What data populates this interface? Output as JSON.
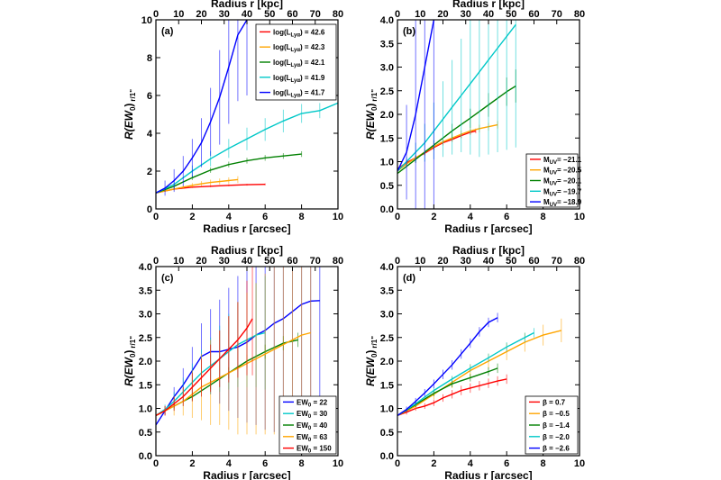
{
  "chart_data": [
    {
      "type": "line",
      "panel_label": "(a)",
      "xlabel": "Radius r [arcsec]",
      "x2label": "Radius r [kpc]",
      "ylabel_main": "R(EW",
      "ylabel_sub": "0",
      "ylabel_close": ")",
      "ylabel_suffix": "r/1\"",
      "xlim": [
        0,
        10
      ],
      "ylim": [
        0,
        10
      ],
      "xticks": [
        "0",
        "2",
        "4",
        "6",
        "8",
        "10"
      ],
      "yticks": [
        "0",
        "2",
        "4",
        "6",
        "8",
        "10"
      ],
      "x2ticks": [
        "0",
        "10",
        "20",
        "30",
        "40",
        "50",
        "60",
        "70",
        "80"
      ],
      "legend": "top-right",
      "series": [
        {
          "name": "log(L",
          "name_sub": "Lyα",
          "name_suffix": ") = 42.6",
          "color": "#ff0000",
          "x": [
            0,
            1,
            2,
            3,
            4,
            5,
            6
          ],
          "y": [
            0.85,
            1.05,
            1.15,
            1.2,
            1.25,
            1.28,
            1.3
          ],
          "err": [
            0.05,
            0.05,
            0.05,
            0.05,
            0.05,
            0.05,
            0.05
          ]
        },
        {
          "name": "log(L",
          "name_sub": "Lyα",
          "name_suffix": ") = 42.3",
          "color": "#ffa500",
          "x": [
            0,
            0.5,
            1,
            1.5,
            2,
            2.5,
            3,
            3.5,
            4,
            4.5
          ],
          "y": [
            0.85,
            0.95,
            1.05,
            1.15,
            1.25,
            1.33,
            1.4,
            1.45,
            1.5,
            1.55
          ],
          "err": [
            0.05,
            0.05,
            0.08,
            0.1,
            0.12,
            0.14,
            0.15,
            0.16,
            0.17,
            0.18
          ]
        },
        {
          "name": "log(L",
          "name_sub": "Lyα",
          "name_suffix": ") = 42.1",
          "color": "#008000",
          "x": [
            0,
            1,
            2,
            3,
            4,
            5,
            6,
            7,
            8
          ],
          "y": [
            0.85,
            1.2,
            1.65,
            2.05,
            2.35,
            2.55,
            2.7,
            2.8,
            2.9
          ],
          "err": [
            0.05,
            0.1,
            0.12,
            0.14,
            0.15,
            0.15,
            0.15,
            0.15,
            0.15
          ]
        },
        {
          "name": "log(L",
          "name_sub": "Lyα",
          "name_suffix": ") = 41.9",
          "color": "#00c8c8",
          "x": [
            0,
            1,
            2,
            3,
            4,
            5,
            6,
            7,
            8,
            9,
            10
          ],
          "y": [
            0.85,
            1.3,
            2.0,
            2.65,
            3.2,
            3.7,
            4.2,
            4.65,
            5.05,
            5.2,
            5.6
          ],
          "err": [
            0.1,
            0.2,
            0.3,
            0.4,
            0.5,
            0.6,
            0.6,
            0.6,
            0.5,
            0.4,
            0.4
          ]
        },
        {
          "name": "log(L",
          "name_sub": "Lyα",
          "name_suffix": ") = 41.7",
          "color": "#0000ff",
          "x": [
            0,
            0.5,
            1,
            1.5,
            2,
            2.5,
            3,
            3.5,
            4,
            4.5,
            5
          ],
          "y": [
            0.85,
            1.1,
            1.5,
            2.0,
            2.7,
            3.5,
            4.6,
            5.9,
            7.5,
            9.2,
            10
          ],
          "err": [
            0.2,
            0.4,
            0.6,
            0.8,
            1.0,
            1.3,
            1.8,
            2.5,
            3.0,
            3.5,
            4.0
          ]
        }
      ]
    },
    {
      "type": "line",
      "panel_label": "(b)",
      "xlabel": "Radius r [arcsec]",
      "x2label": "Radius r [kpc]",
      "ylabel_main": "R(EW",
      "ylabel_sub": "0",
      "ylabel_close": ")",
      "ylabel_suffix": "r/1\"",
      "xlim": [
        0,
        10
      ],
      "ylim": [
        0,
        4
      ],
      "xticks": [
        "0",
        "2",
        "4",
        "6",
        "8",
        "10"
      ],
      "yticks": [
        "0.0",
        "0.5",
        "1.0",
        "1.5",
        "2.0",
        "2.5",
        "3.0",
        "3.5",
        "4.0"
      ],
      "x2ticks": [
        "0",
        "10",
        "20",
        "30",
        "40",
        "50",
        "60",
        "70",
        "80"
      ],
      "legend": "bottom-right",
      "series": [
        {
          "name": "M",
          "name_sub": "UV",
          "name_suffix": "= −21.1",
          "color": "#ff0000",
          "x": [
            0,
            0.5,
            1,
            1.5,
            2,
            2.5,
            3,
            3.5,
            4,
            4.3
          ],
          "y": [
            0.85,
            0.98,
            1.08,
            1.18,
            1.3,
            1.4,
            1.47,
            1.55,
            1.62,
            1.65
          ],
          "err": [
            0.05,
            0.05,
            0.05,
            0.05,
            0.05,
            0.05,
            0.05,
            0.05,
            0.05,
            0.05
          ]
        },
        {
          "name": "M",
          "name_sub": "UV",
          "name_suffix": "= −20.5",
          "color": "#ffa500",
          "x": [
            0,
            0.5,
            1,
            1.5,
            2,
            2.5,
            3,
            3.5,
            4,
            4.5,
            5,
            5.5
          ],
          "y": [
            0.8,
            0.95,
            1.08,
            1.2,
            1.32,
            1.42,
            1.5,
            1.58,
            1.65,
            1.7,
            1.74,
            1.78
          ],
          "err": [
            0.05,
            0.05,
            0.05,
            0.06,
            0.07,
            0.08,
            0.08,
            0.08,
            0.08,
            0.08,
            0.08,
            0.08
          ]
        },
        {
          "name": "M",
          "name_sub": "UV",
          "name_suffix": "= −20.1",
          "color": "#008000",
          "x": [
            0,
            1,
            2,
            3,
            4,
            5,
            6,
            6.5
          ],
          "y": [
            0.75,
            1.05,
            1.35,
            1.65,
            1.92,
            2.2,
            2.48,
            2.6
          ],
          "err": [
            0.05,
            0.08,
            0.1,
            0.15,
            0.2,
            0.25,
            0.3,
            0.35
          ]
        },
        {
          "name": "M",
          "name_sub": "UV",
          "name_suffix": "= −19.7",
          "color": "#00c8c8",
          "x": [
            0,
            0.5,
            1,
            1.5,
            2,
            2.5,
            3,
            3.5,
            4,
            4.5,
            5,
            5.5,
            6,
            6.5
          ],
          "y": [
            0.8,
            1.0,
            1.2,
            1.4,
            1.65,
            1.9,
            2.15,
            2.4,
            2.65,
            2.9,
            3.15,
            3.4,
            3.65,
            3.9
          ],
          "err": [
            0.05,
            0.1,
            0.2,
            0.4,
            0.6,
            0.8,
            1.0,
            1.2,
            1.5,
            1.8,
            2.0,
            2.2,
            2.4,
            2.6
          ]
        },
        {
          "name": "M",
          "name_sub": "UV",
          "name_suffix": "= −18.9",
          "color": "#0000ff",
          "x": [
            0,
            0.5,
            1,
            1.5,
            2
          ],
          "y": [
            0.8,
            1.2,
            2.0,
            3.0,
            4.0
          ],
          "err": [
            0.2,
            1.0,
            2.0,
            3.5,
            4.0
          ]
        }
      ]
    },
    {
      "type": "line",
      "panel_label": "(c)",
      "xlabel": "Radius r [arcsec]",
      "x2label": "Radius r [kpc]",
      "ylabel_main": "R(EW",
      "ylabel_sub": "0",
      "ylabel_close": ")",
      "ylabel_suffix": "r/1\"",
      "xlim": [
        0,
        10
      ],
      "ylim": [
        0,
        4
      ],
      "xticks": [
        "0",
        "2",
        "4",
        "6",
        "8",
        "10"
      ],
      "yticks": [
        "0.0",
        "0.5",
        "1.0",
        "1.5",
        "2.0",
        "2.5",
        "3.0",
        "3.5",
        "4.0"
      ],
      "x2ticks": [
        "0",
        "10",
        "20",
        "30",
        "40",
        "50",
        "60",
        "70",
        "80"
      ],
      "legend": "bottom-right",
      "series": [
        {
          "name": "EW",
          "name_sub": "0",
          "name_suffix": " = 22",
          "color": "#0000ff",
          "x": [
            0,
            0.5,
            1,
            1.5,
            2,
            2.5,
            3,
            3.5,
            4,
            4.5,
            5,
            5.5,
            6,
            6.5,
            7,
            7.5,
            8,
            8.5,
            9
          ],
          "y": [
            0.65,
            0.95,
            1.25,
            1.5,
            1.8,
            2.1,
            2.2,
            2.2,
            2.25,
            2.3,
            2.4,
            2.55,
            2.65,
            2.8,
            2.9,
            3.05,
            3.2,
            3.27,
            3.28
          ],
          "err": [
            0.05,
            0.1,
            0.2,
            0.35,
            0.5,
            0.7,
            0.9,
            1.1,
            1.3,
            1.5,
            1.7,
            1.9,
            2.1,
            2.3,
            2.5,
            2.6,
            2.7,
            2.8,
            2.9
          ]
        },
        {
          "name": "EW",
          "name_sub": "0",
          "name_suffix": " = 30",
          "color": "#00c8c8",
          "x": [
            0,
            0.5,
            1,
            1.5,
            2,
            2.5,
            3,
            3.5,
            4,
            4.5,
            5,
            5.5,
            6
          ],
          "y": [
            0.85,
            0.98,
            1.15,
            1.35,
            1.55,
            1.75,
            1.9,
            2.05,
            2.2,
            2.35,
            2.45,
            2.55,
            2.6
          ],
          "err": [
            0.05,
            0.1,
            0.2,
            0.3,
            0.4,
            0.5,
            0.6,
            0.7,
            0.8,
            0.9,
            1.0,
            1.1,
            1.2
          ]
        },
        {
          "name": "EW",
          "name_sub": "0",
          "name_suffix": " = 40",
          "color": "#008000",
          "x": [
            0,
            1,
            2,
            3,
            4,
            5,
            6,
            7,
            7.8
          ],
          "y": [
            0.85,
            1.05,
            1.25,
            1.5,
            1.75,
            2.0,
            2.2,
            2.38,
            2.45
          ],
          "err": [
            0.05,
            0.05,
            0.08,
            0.1,
            0.12,
            0.14,
            0.15,
            0.15,
            0.15
          ]
        },
        {
          "name": "EW",
          "name_sub": "0",
          "name_suffix": " = 63",
          "color": "#ffa500",
          "x": [
            0,
            0.5,
            1,
            1.5,
            2,
            2.5,
            3,
            3.5,
            4,
            4.5,
            5,
            5.5,
            6,
            6.5,
            7,
            7.5,
            8,
            8.5
          ],
          "y": [
            0.85,
            0.95,
            1.05,
            1.15,
            1.3,
            1.45,
            1.55,
            1.65,
            1.75,
            1.85,
            1.95,
            2.05,
            2.15,
            2.25,
            2.35,
            2.45,
            2.55,
            2.6
          ],
          "err": [
            0.05,
            0.1,
            0.2,
            0.3,
            0.5,
            0.7,
            0.9,
            1.0,
            1.2,
            1.4,
            1.5,
            1.6,
            1.7,
            1.8,
            1.9,
            2.0,
            2.1,
            2.2
          ]
        },
        {
          "name": "EW",
          "name_sub": "0",
          "name_suffix": " = 150",
          "color": "#ff0000",
          "x": [
            0,
            0.5,
            1,
            1.5,
            2,
            2.5,
            3,
            3.5,
            4,
            4.5,
            5,
            5.3
          ],
          "y": [
            0.85,
            0.95,
            1.1,
            1.25,
            1.45,
            1.65,
            1.85,
            2.05,
            2.25,
            2.45,
            2.7,
            2.9
          ],
          "err": [
            0.05,
            0.1,
            0.15,
            0.2,
            0.3,
            0.4,
            0.5,
            0.6,
            0.7,
            0.8,
            1.0,
            1.2
          ]
        }
      ]
    },
    {
      "type": "line",
      "panel_label": "(d)",
      "xlabel": "Radius r [arcsec]",
      "x2label": "Radius r [kpc]",
      "ylabel_main": "R(EW",
      "ylabel_sub": "0",
      "ylabel_close": ")",
      "ylabel_suffix": "r/1\"",
      "xlim": [
        0,
        10
      ],
      "ylim": [
        0,
        4
      ],
      "xticks": [
        "0",
        "2",
        "4",
        "6",
        "8",
        "10"
      ],
      "yticks": [
        "0.0",
        "0.5",
        "1.0",
        "1.5",
        "2.0",
        "2.5",
        "3.0",
        "3.5",
        "4.0"
      ],
      "x2ticks": [
        "0",
        "10",
        "20",
        "30",
        "40",
        "50",
        "60",
        "70",
        "80"
      ],
      "legend": "bottom-right",
      "series": [
        {
          "name": "β =   0.7",
          "color": "#ff0000",
          "x": [
            0,
            0.5,
            1,
            1.5,
            2,
            2.5,
            3,
            3.5,
            4,
            4.5,
            5,
            5.5,
            6
          ],
          "y": [
            0.85,
            0.92,
            1.0,
            1.05,
            1.12,
            1.22,
            1.3,
            1.38,
            1.43,
            1.48,
            1.53,
            1.58,
            1.62
          ],
          "err": [
            0.05,
            0.05,
            0.05,
            0.06,
            0.07,
            0.08,
            0.09,
            0.1,
            0.1,
            0.1,
            0.1,
            0.1,
            0.1
          ]
        },
        {
          "name": "β = −0.5",
          "color": "#ffa500",
          "x": [
            0,
            1,
            2,
            3,
            4,
            5,
            6,
            7,
            8,
            9
          ],
          "y": [
            0.85,
            1.05,
            1.3,
            1.55,
            1.8,
            2.0,
            2.2,
            2.4,
            2.55,
            2.65
          ],
          "err": [
            0.05,
            0.08,
            0.1,
            0.12,
            0.14,
            0.16,
            0.18,
            0.2,
            0.22,
            0.25
          ]
        },
        {
          "name": "β = −1.4",
          "color": "#008000",
          "x": [
            0,
            1,
            2,
            3,
            4,
            5,
            5.5
          ],
          "y": [
            0.85,
            1.08,
            1.32,
            1.52,
            1.65,
            1.78,
            1.85
          ],
          "err": [
            0.05,
            0.05,
            0.06,
            0.07,
            0.08,
            0.09,
            0.1
          ]
        },
        {
          "name": "β = −2.0",
          "color": "#00c8c8",
          "x": [
            0,
            1,
            2,
            3,
            4,
            5,
            6,
            7,
            7.5
          ],
          "y": [
            0.85,
            1.1,
            1.38,
            1.62,
            1.85,
            2.07,
            2.3,
            2.5,
            2.6
          ],
          "err": [
            0.05,
            0.05,
            0.06,
            0.07,
            0.08,
            0.09,
            0.1,
            0.1,
            0.1
          ]
        },
        {
          "name": "β = −2.6",
          "color": "#0000ff",
          "x": [
            0,
            0.5,
            1,
            1.5,
            2,
            2.5,
            3,
            3.5,
            4,
            4.5,
            5,
            5.5
          ],
          "y": [
            0.85,
            0.98,
            1.15,
            1.33,
            1.52,
            1.72,
            1.92,
            2.15,
            2.38,
            2.62,
            2.82,
            2.92
          ],
          "err": [
            0.05,
            0.06,
            0.07,
            0.08,
            0.09,
            0.1,
            0.1,
            0.1,
            0.1,
            0.1,
            0.1,
            0.1
          ]
        }
      ]
    }
  ]
}
